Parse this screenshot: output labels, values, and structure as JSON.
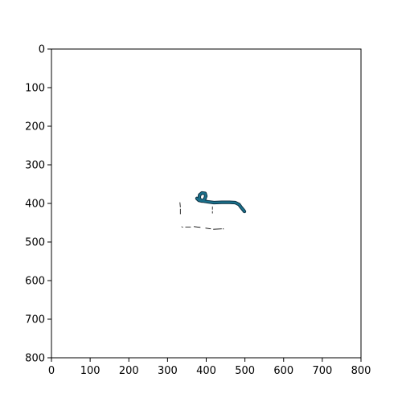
{
  "chart_data": {
    "type": "line",
    "title": "",
    "xlabel": "",
    "ylabel": "",
    "xlim": [
      0,
      800
    ],
    "ylim": [
      800,
      0
    ],
    "y_inverted": true,
    "grid": false,
    "x_ticks": [
      "0",
      "100",
      "200",
      "300",
      "400",
      "500",
      "600",
      "700",
      "800"
    ],
    "y_ticks": [
      "0",
      "100",
      "200",
      "300",
      "400",
      "500",
      "600",
      "700",
      "800"
    ],
    "series": [
      {
        "style": "thick-stroke",
        "color": "#1a6f8a",
        "edge_color": "#0b2a3a",
        "points": [
          [
            385,
            392
          ],
          [
            382,
            385
          ],
          [
            383,
            378
          ],
          [
            389,
            373
          ],
          [
            397,
            374
          ],
          [
            399,
            381
          ],
          [
            396,
            389
          ],
          [
            389,
            394
          ],
          [
            381,
            392
          ],
          [
            376,
            387
          ],
          [
            380,
            390
          ],
          [
            392,
            394
          ],
          [
            405,
            396
          ],
          [
            420,
            398
          ],
          [
            440,
            397
          ],
          [
            460,
            397
          ],
          [
            475,
            398
          ],
          [
            485,
            403
          ],
          [
            490,
            410
          ],
          [
            496,
            417
          ],
          [
            499,
            421
          ]
        ]
      },
      {
        "style": "thin-dashed",
        "color": "#000000",
        "segments": [
          [
            [
              332,
              397
            ],
            [
              333,
              410
            ]
          ],
          [
            [
              333,
              414
            ],
            [
              333,
              428
            ]
          ],
          [
            [
              336,
              460
            ],
            [
              340,
              462
            ]
          ],
          [
            [
              346,
              461
            ],
            [
              360,
              461
            ]
          ],
          [
            [
              368,
              460
            ],
            [
              385,
              462
            ]
          ],
          [
            [
              398,
              464
            ],
            [
              412,
              466
            ]
          ],
          [
            [
              418,
              467
            ],
            [
              440,
              466
            ]
          ],
          [
            [
              443,
              465
            ],
            [
              445,
              467
            ]
          ],
          [
            [
              416,
              408
            ],
            [
              416,
              416
            ]
          ],
          [
            [
              416,
              420
            ],
            [
              416,
              426
            ]
          ]
        ]
      }
    ]
  }
}
